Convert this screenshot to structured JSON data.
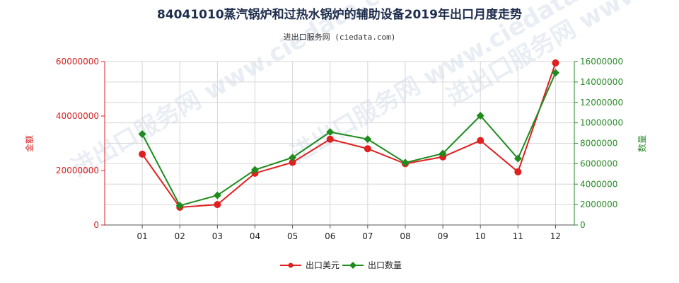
{
  "title": "84041010蒸汽锅炉和过热水锅炉的辅助设备2019年出口月度走势",
  "subtitle": "进出口服务网 (ciedata.com)",
  "colors": {
    "amount": "#e02020",
    "quantity": "#1e8c1e",
    "grid": "#d6d6d6"
  },
  "chart_data": {
    "type": "line",
    "categories": [
      "01",
      "02",
      "03",
      "04",
      "05",
      "06",
      "07",
      "08",
      "09",
      "10",
      "11",
      "12"
    ],
    "y_left": {
      "label": "金额",
      "lim": [
        0,
        60000000
      ],
      "ticks": [
        "0",
        "20000000",
        "40000000",
        "60000000"
      ]
    },
    "y_right": {
      "label": "数量",
      "lim": [
        0,
        16000000
      ],
      "ticks": [
        "0",
        "2000000",
        "4000000",
        "6000000",
        "8000000",
        "10000000",
        "12000000",
        "14000000",
        "16000000"
      ]
    },
    "series": [
      {
        "name": "出口美元",
        "axis": "left",
        "color": "#e02020",
        "marker": "circle",
        "values": [
          26000000,
          6500000,
          7500000,
          19000000,
          23000000,
          31500000,
          28000000,
          22500000,
          25000000,
          31000000,
          19500000,
          59500000
        ]
      },
      {
        "name": "出口数量",
        "axis": "right",
        "color": "#1e8c1e",
        "marker": "diamond",
        "values": [
          8900000,
          1900000,
          2900000,
          5400000,
          6600000,
          9100000,
          8400000,
          6100000,
          7000000,
          10700000,
          6500000,
          14900000
        ]
      }
    ],
    "grid": true,
    "legend": "bottom-center"
  },
  "watermark": "进出口服务网 www.ciedata.com"
}
